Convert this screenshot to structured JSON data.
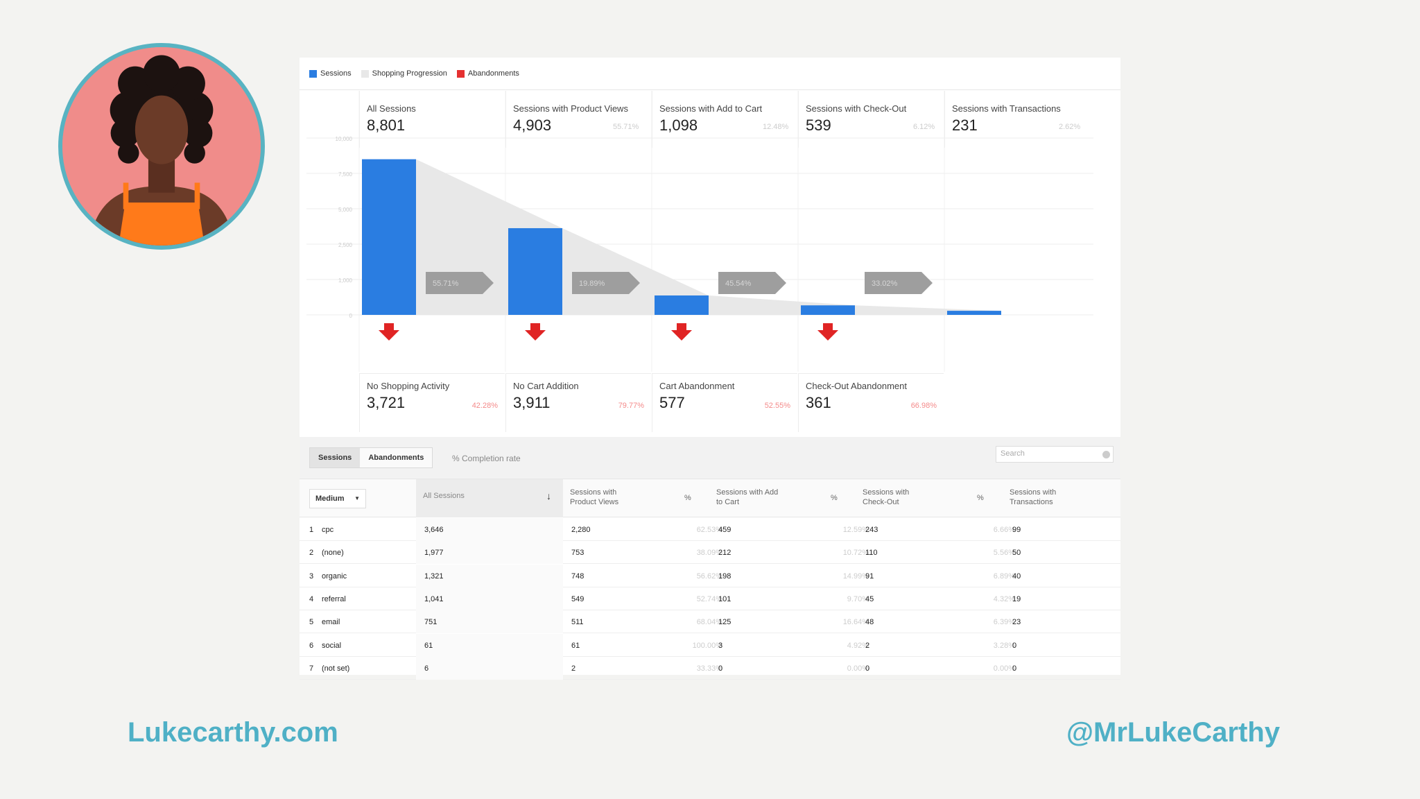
{
  "legend": [
    {
      "label": "Sessions",
      "color": "#2a7de1"
    },
    {
      "label": "Shopping Progression",
      "color": "#e8e8e8"
    },
    {
      "label": "Abandonments",
      "color": "#e53030"
    }
  ],
  "funnel": {
    "steps": [
      {
        "label": "All Sessions",
        "value": "8,801",
        "pct": "",
        "sessions": 8801
      },
      {
        "label": "Sessions with Product Views",
        "value": "4,903",
        "pct": "55.71%",
        "sessions": 4903
      },
      {
        "label": "Sessions with Add to Cart",
        "value": "1,098",
        "pct": "12.48%",
        "sessions": 1098
      },
      {
        "label": "Sessions with Check-Out",
        "value": "539",
        "pct": "6.12%",
        "sessions": 539
      },
      {
        "label": "Sessions with Transactions",
        "value": "231",
        "pct": "2.62%",
        "sessions": 231
      }
    ],
    "progression": [
      "55.71%",
      "19.89%",
      "45.54%",
      "33.02%"
    ],
    "y_ticks": [
      "10,000",
      "7,500",
      "5,000",
      "2,500",
      "1,000",
      "0"
    ],
    "abandonments": [
      {
        "label": "No Shopping Activity",
        "value": "3,721",
        "pct": "42.28%"
      },
      {
        "label": "No Cart Addition",
        "value": "3,911",
        "pct": "79.77%"
      },
      {
        "label": "Cart Abandonment",
        "value": "577",
        "pct": "52.55%"
      },
      {
        "label": "Check-Out Abandonment",
        "value": "361",
        "pct": "66.98%"
      }
    ]
  },
  "table": {
    "tabs": [
      "Sessions",
      "Abandonments"
    ],
    "extra_tab": "% Completion rate",
    "search_placeholder": "Search",
    "dimension": "Medium",
    "headers": {
      "all": "All Sessions",
      "pv": "Sessions with Product Views",
      "pct": "%",
      "atc": "Sessions with Add to Cart",
      "co": "Sessions with Check-Out",
      "tx": "Sessions with Transactions"
    },
    "rows": [
      {
        "n": "1",
        "medium": "cpc",
        "all": "3,646",
        "pv": "2,280",
        "pv_pct": "62.53%",
        "atc": "459",
        "atc_pct": "12.59%",
        "co": "243",
        "co_pct": "6.66%",
        "tx": "99"
      },
      {
        "n": "2",
        "medium": "(none)",
        "all": "1,977",
        "pv": "753",
        "pv_pct": "38.09%",
        "atc": "212",
        "atc_pct": "10.72%",
        "co": "110",
        "co_pct": "5.56%",
        "tx": "50"
      },
      {
        "n": "3",
        "medium": "organic",
        "all": "1,321",
        "pv": "748",
        "pv_pct": "56.62%",
        "atc": "198",
        "atc_pct": "14.99%",
        "co": "91",
        "co_pct": "6.89%",
        "tx": "40"
      },
      {
        "n": "4",
        "medium": "referral",
        "all": "1,041",
        "pv": "549",
        "pv_pct": "52.74%",
        "atc": "101",
        "atc_pct": "9.70%",
        "co": "45",
        "co_pct": "4.32%",
        "tx": "19"
      },
      {
        "n": "5",
        "medium": "email",
        "all": "751",
        "pv": "511",
        "pv_pct": "68.04%",
        "atc": "125",
        "atc_pct": "16.64%",
        "co": "48",
        "co_pct": "6.39%",
        "tx": "23"
      },
      {
        "n": "6",
        "medium": "social",
        "all": "61",
        "pv": "61",
        "pv_pct": "100.00%",
        "atc": "3",
        "atc_pct": "4.92%",
        "co": "2",
        "co_pct": "3.28%",
        "tx": "0"
      },
      {
        "n": "7",
        "medium": "(not set)",
        "all": "6",
        "pv": "2",
        "pv_pct": "33.33%",
        "atc": "0",
        "atc_pct": "0.00%",
        "co": "0",
        "co_pct": "0.00%",
        "tx": "0"
      }
    ]
  },
  "footer": {
    "website": "Lukecarthy.com",
    "handle": "@MrLukeCarthy"
  }
}
